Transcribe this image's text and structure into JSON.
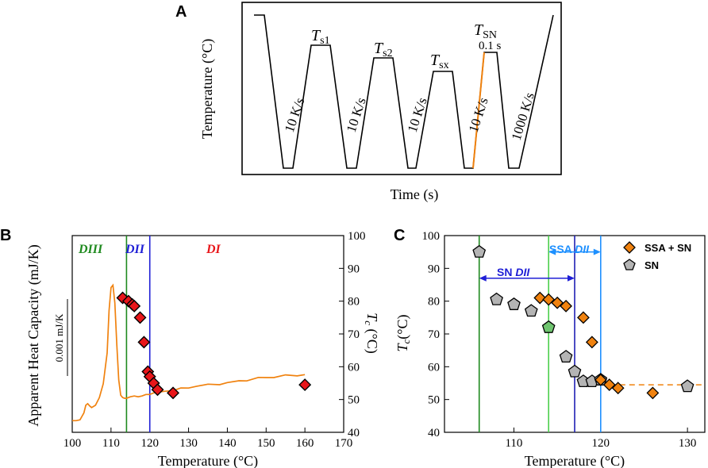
{
  "panels": {
    "A": {
      "letter": "A",
      "xlabel": "Time (s)",
      "ylabel": "Temperature (°C)",
      "rates": [
        "10 K/s",
        "10 K/s",
        "10 K/s",
        "10 K/s",
        "1000 K/s"
      ],
      "plateaus": [
        {
          "T": "T",
          "sub": "s1"
        },
        {
          "T": "T",
          "sub": "s2"
        },
        {
          "T": "T",
          "sub": "sx"
        },
        {
          "T": "T",
          "sub": "SN"
        }
      ],
      "hold_time": "0.1 s",
      "colors": {
        "profile": "#000000",
        "heating_highlight": "#f0820f"
      }
    },
    "B": {
      "letter": "B",
      "xlabel": "Temperature (°C)",
      "ylabel_left": "Apparent Heat Capacity (mJ/K)",
      "ylabel_right_T": "T",
      "ylabel_right_sub": "c",
      "ylabel_right_unit": " (°C)",
      "scale_bar_label": "0.001 mJ/K",
      "regions": {
        "DIII": "DIII",
        "DII": "DII",
        "DI": "DI"
      },
      "colors": {
        "curve": "#f0820f",
        "marker": "#e8161a",
        "DIII": "#1f8a1f",
        "DII": "#1f1fd6",
        "DI": "#e8161a"
      }
    },
    "C": {
      "letter": "C",
      "xlabel": "Temperature (°C)",
      "ylabel_T": "T",
      "ylabel_sub": "c",
      "ylabel_unit": "(°C)",
      "legend": [
        "SSA + SN",
        "SN"
      ],
      "annotations": {
        "sn_dii": "SN ",
        "sn_dii_it": "DII",
        "ssa_dii": "SSA ",
        "ssa_dii_it": "DII"
      },
      "colors": {
        "ssa": "#f0820f",
        "sn": "#b4b4b4",
        "sn_green": "#6fc46f",
        "line_dark_green": "#1f8a1f",
        "line_light_green": "#4ccf4c",
        "line_blue": "#1f1fb4",
        "line_light_blue": "#1e90ff",
        "arrow_blue": "#1f1fd6",
        "arrow_light_blue": "#1e90ff"
      }
    }
  },
  "chart_data": [
    {
      "type": "line",
      "panel": "B",
      "title": "",
      "x_ticks": [
        100,
        110,
        120,
        130,
        140,
        150,
        160,
        170
      ],
      "xlim": [
        100,
        170
      ],
      "y_right_ticks": [
        40,
        50,
        60,
        70,
        80,
        90,
        100
      ],
      "y_right_lim": [
        40,
        100
      ],
      "vlines": [
        {
          "x": 114,
          "color": "#1f8a1f"
        },
        {
          "x": 120,
          "color": "#1f1fd6"
        }
      ],
      "series": [
        {
          "name": "Apparent Heat Capacity",
          "axis": "left",
          "x": [
            100,
            101,
            102,
            103,
            103.5,
            104,
            104.5,
            105,
            106,
            107,
            108,
            109,
            109.5,
            110,
            110.5,
            111,
            111.5,
            112,
            112.5,
            113,
            113.5,
            114,
            115,
            116,
            117,
            118,
            119,
            120,
            121,
            122,
            124,
            126,
            128,
            130,
            132,
            135,
            138,
            140,
            143,
            145,
            148,
            150,
            152,
            155,
            158,
            160
          ],
          "y": [
            -0.00058,
            -0.00058,
            -0.00057,
            -0.00048,
            -0.00038,
            -0.00036,
            -0.00039,
            -0.00041,
            -0.00038,
            -0.00028,
            -0.0001,
            0.0003,
            0.00085,
            0.00115,
            0.00118,
            0.00095,
            0.0004,
            -5e-05,
            -0.00025,
            -0.00028,
            -0.00029,
            -0.00029,
            -0.00027,
            -0.00026,
            -0.00027,
            -0.00026,
            -0.00024,
            -0.00024,
            -0.00022,
            -0.00022,
            -0.0002,
            -0.00018,
            -0.00017,
            -0.00015,
            -0.00013,
            -0.00012,
            -0.0001,
            -9e-05,
            -7e-05,
            -5e-05,
            -3e-05,
            -2e-05,
            -1e-05,
            0.0,
            1e-05,
            2e-05
          ]
        },
        {
          "name": "Tc",
          "axis": "right",
          "marker": "diamond",
          "x": [
            113,
            114.5,
            115.5,
            116,
            117.5,
            118.5,
            119.5,
            120,
            121,
            122,
            126,
            160
          ],
          "y": [
            81,
            80,
            79,
            78.5,
            75,
            67.5,
            58.5,
            57,
            55,
            53,
            52,
            54.5
          ]
        }
      ]
    },
    {
      "type": "scatter",
      "panel": "C",
      "title": "",
      "x_ticks": [
        110,
        120,
        130
      ],
      "xlim": [
        102,
        132
      ],
      "y_ticks": [
        40,
        50,
        60,
        70,
        80,
        90,
        100
      ],
      "ylim": [
        40,
        100
      ],
      "vlines": [
        {
          "x": 106,
          "color": "#1f8a1f"
        },
        {
          "x": 114,
          "color": "#4ccf4c"
        },
        {
          "x": 117,
          "color": "#1f1fb4"
        },
        {
          "x": 120,
          "color": "#1e90ff"
        }
      ],
      "arrows": [
        {
          "label": "SN DII",
          "x0": 106,
          "x1": 117,
          "y": 87
        },
        {
          "label": "SSA DII",
          "x0": 114,
          "x1": 120,
          "y": 95
        }
      ],
      "hline": {
        "y": 54.5,
        "x0": 120,
        "x1": 132,
        "style": "dashed"
      },
      "series": [
        {
          "name": "SSA + SN",
          "marker": "diamond",
          "x": [
            113,
            114,
            115,
            116,
            118,
            119,
            120,
            121,
            122,
            126
          ],
          "y": [
            81,
            80.5,
            79.5,
            78.5,
            75,
            67.5,
            56,
            54.5,
            53.5,
            52
          ]
        },
        {
          "name": "SN",
          "marker": "pentagon",
          "x": [
            106,
            108,
            110,
            112,
            114,
            116,
            117,
            118,
            119,
            120,
            130
          ],
          "y": [
            95,
            80.5,
            79,
            77,
            72,
            63,
            58.5,
            55.5,
            55.5,
            56,
            54
          ],
          "highlight_index": 4
        }
      ]
    }
  ]
}
